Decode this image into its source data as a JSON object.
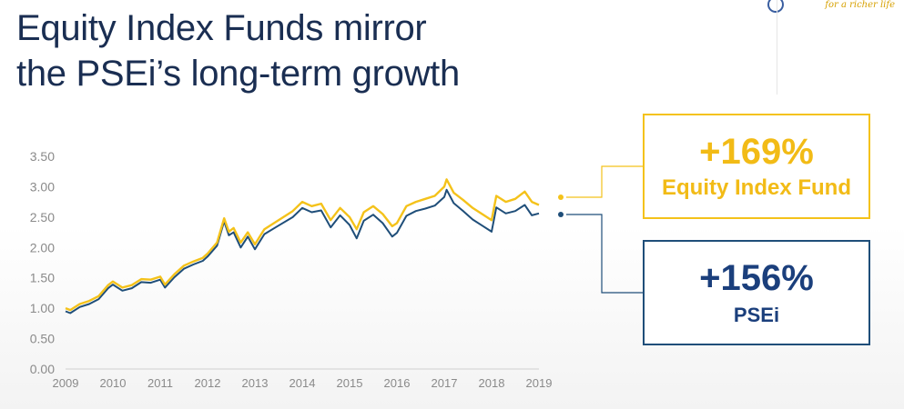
{
  "slide": {
    "title_line1": "Equity Index Funds mirror",
    "title_line2": "the PSEi’s long-term growth",
    "logo_tagline": "for a richer life",
    "logo_icon": "swirl-logo-icon"
  },
  "callouts": {
    "fund": {
      "value": "+169%",
      "label": "Equity Index Fund"
    },
    "psei": {
      "value": "+156%",
      "label": "PSEi"
    }
  },
  "colors": {
    "fund": "#f4c21a",
    "psei": "#1f4e79",
    "axis_text": "#8a8a8a",
    "title": "#1a2e52"
  },
  "chart_data": {
    "type": "line",
    "ylim": [
      0,
      3.5
    ],
    "y_ticks": [
      "3.50",
      "3.00",
      "2.50",
      "2.00",
      "1.50",
      "1.00",
      "0.50",
      "0.00"
    ],
    "x_ticks": [
      "2009",
      "2010",
      "2011",
      "2012",
      "2013",
      "2014",
      "2015",
      "2016",
      "2017",
      "2018",
      "2019"
    ],
    "grid": false,
    "series": [
      {
        "key": "fund",
        "color": "#f4c21a",
        "points": [
          [
            2009.0,
            1.0
          ],
          [
            2009.1,
            0.97
          ],
          [
            2009.3,
            1.07
          ],
          [
            2009.5,
            1.12
          ],
          [
            2009.7,
            1.2
          ],
          [
            2009.9,
            1.38
          ],
          [
            2010.0,
            1.44
          ],
          [
            2010.2,
            1.34
          ],
          [
            2010.4,
            1.38
          ],
          [
            2010.6,
            1.48
          ],
          [
            2010.8,
            1.47
          ],
          [
            2011.0,
            1.52
          ],
          [
            2011.1,
            1.39
          ],
          [
            2011.3,
            1.56
          ],
          [
            2011.5,
            1.7
          ],
          [
            2011.7,
            1.77
          ],
          [
            2011.9,
            1.83
          ],
          [
            2012.0,
            1.9
          ],
          [
            2012.2,
            2.08
          ],
          [
            2012.35,
            2.48
          ],
          [
            2012.45,
            2.26
          ],
          [
            2012.55,
            2.32
          ],
          [
            2012.7,
            2.08
          ],
          [
            2012.85,
            2.25
          ],
          [
            2013.0,
            2.05
          ],
          [
            2013.2,
            2.3
          ],
          [
            2013.5,
            2.45
          ],
          [
            2013.8,
            2.6
          ],
          [
            2014.0,
            2.75
          ],
          [
            2014.2,
            2.68
          ],
          [
            2014.4,
            2.72
          ],
          [
            2014.6,
            2.45
          ],
          [
            2014.8,
            2.65
          ],
          [
            2015.0,
            2.5
          ],
          [
            2015.15,
            2.3
          ],
          [
            2015.3,
            2.58
          ],
          [
            2015.5,
            2.68
          ],
          [
            2015.7,
            2.55
          ],
          [
            2015.9,
            2.35
          ],
          [
            2016.0,
            2.4
          ],
          [
            2016.2,
            2.68
          ],
          [
            2016.4,
            2.75
          ],
          [
            2016.6,
            2.8
          ],
          [
            2016.8,
            2.85
          ],
          [
            2017.0,
            3.0
          ],
          [
            2017.05,
            3.12
          ],
          [
            2017.2,
            2.9
          ],
          [
            2017.4,
            2.78
          ],
          [
            2017.6,
            2.65
          ],
          [
            2017.8,
            2.55
          ],
          [
            2018.0,
            2.45
          ],
          [
            2018.1,
            2.85
          ],
          [
            2018.3,
            2.75
          ],
          [
            2018.5,
            2.8
          ],
          [
            2018.7,
            2.92
          ],
          [
            2018.85,
            2.75
          ],
          [
            2019.0,
            2.7
          ]
        ]
      },
      {
        "key": "psei",
        "color": "#1f4e79",
        "points": [
          [
            2009.0,
            0.95
          ],
          [
            2009.1,
            0.92
          ],
          [
            2009.3,
            1.02
          ],
          [
            2009.5,
            1.07
          ],
          [
            2009.7,
            1.15
          ],
          [
            2009.9,
            1.33
          ],
          [
            2010.0,
            1.39
          ],
          [
            2010.2,
            1.29
          ],
          [
            2010.4,
            1.33
          ],
          [
            2010.6,
            1.43
          ],
          [
            2010.8,
            1.42
          ],
          [
            2011.0,
            1.47
          ],
          [
            2011.1,
            1.34
          ],
          [
            2011.3,
            1.51
          ],
          [
            2011.5,
            1.65
          ],
          [
            2011.7,
            1.72
          ],
          [
            2011.9,
            1.78
          ],
          [
            2012.0,
            1.85
          ],
          [
            2012.2,
            2.03
          ],
          [
            2012.35,
            2.43
          ],
          [
            2012.45,
            2.2
          ],
          [
            2012.55,
            2.25
          ],
          [
            2012.7,
            2.0
          ],
          [
            2012.85,
            2.18
          ],
          [
            2013.0,
            1.97
          ],
          [
            2013.2,
            2.22
          ],
          [
            2013.5,
            2.36
          ],
          [
            2013.8,
            2.5
          ],
          [
            2014.0,
            2.65
          ],
          [
            2014.2,
            2.58
          ],
          [
            2014.4,
            2.61
          ],
          [
            2014.6,
            2.33
          ],
          [
            2014.8,
            2.53
          ],
          [
            2015.0,
            2.37
          ],
          [
            2015.15,
            2.15
          ],
          [
            2015.3,
            2.44
          ],
          [
            2015.5,
            2.54
          ],
          [
            2015.7,
            2.4
          ],
          [
            2015.9,
            2.18
          ],
          [
            2016.0,
            2.24
          ],
          [
            2016.2,
            2.52
          ],
          [
            2016.4,
            2.6
          ],
          [
            2016.6,
            2.64
          ],
          [
            2016.8,
            2.69
          ],
          [
            2017.0,
            2.83
          ],
          [
            2017.05,
            2.95
          ],
          [
            2017.2,
            2.73
          ],
          [
            2017.4,
            2.6
          ],
          [
            2017.6,
            2.46
          ],
          [
            2017.8,
            2.36
          ],
          [
            2018.0,
            2.26
          ],
          [
            2018.1,
            2.66
          ],
          [
            2018.3,
            2.56
          ],
          [
            2018.5,
            2.6
          ],
          [
            2018.7,
            2.7
          ],
          [
            2018.85,
            2.53
          ],
          [
            2019.0,
            2.56
          ]
        ]
      }
    ]
  }
}
